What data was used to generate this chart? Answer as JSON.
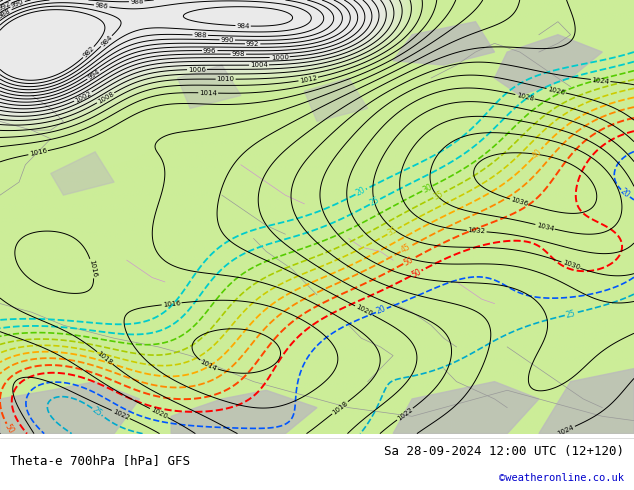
{
  "title_left": "Theta-e 700hPa [hPa] GFS",
  "title_right": "Sa 28-09-2024 12:00 UTC (12+120)",
  "credit": "©weatheronline.co.uk",
  "title_color": "#000000",
  "credit_color": "#0000cc",
  "bg_color": "#ffffff",
  "map_bg_green": "#ccee99",
  "map_bg_white": "#e8e8e8",
  "map_bg_gray": "#bbbbbb",
  "figsize": [
    6.34,
    4.9
  ],
  "dpi": 100
}
